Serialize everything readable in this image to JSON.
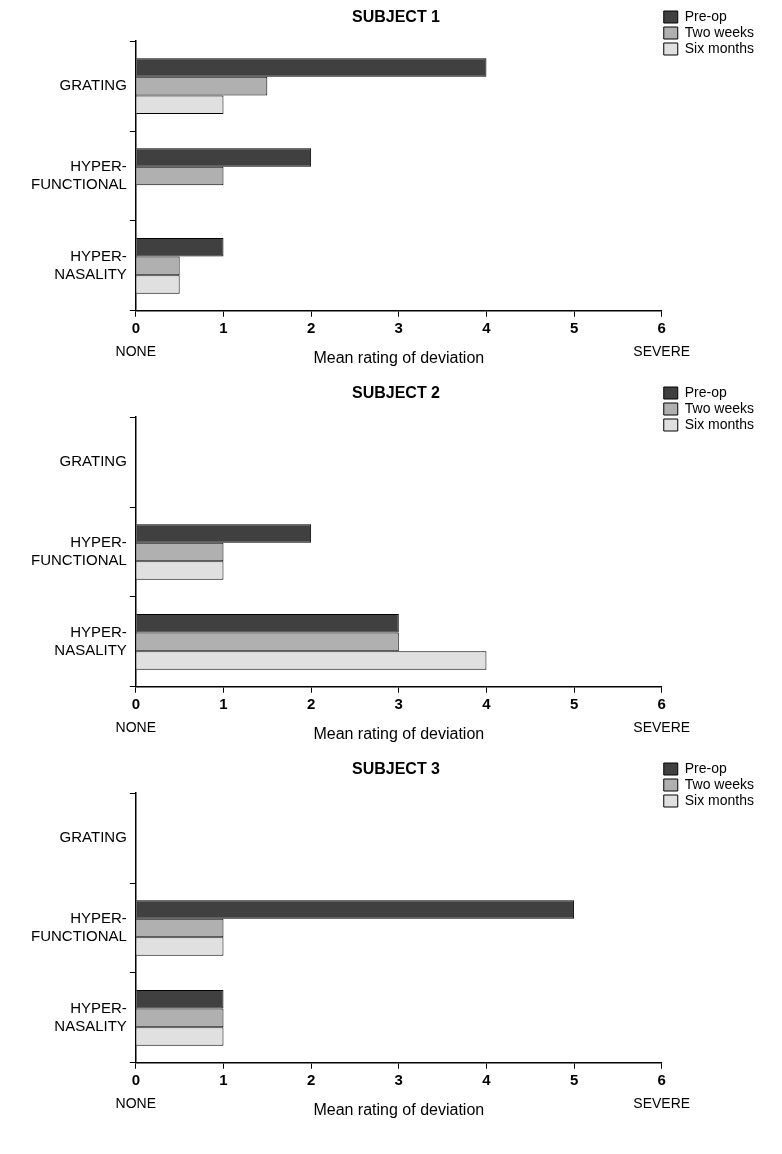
{
  "chart_data": [
    {
      "type": "bar",
      "orientation": "horizontal",
      "title": "SUBJECT 1",
      "xlabel": "Mean rating of deviation",
      "categories": [
        "GRATING",
        "HYPER-\nFUNCTIONAL",
        "HYPER-\nNASALITY"
      ],
      "series": [
        {
          "name": "Pre-op",
          "color": "#404040",
          "values": [
            4,
            2,
            1
          ]
        },
        {
          "name": "Two weeks",
          "color": "#b0b0b0",
          "values": [
            1.5,
            1,
            0.5
          ]
        },
        {
          "name": "Six months",
          "color": "#e0e0e0",
          "values": [
            1,
            0,
            0.5
          ]
        }
      ],
      "xlim": [
        0,
        6
      ],
      "xticks": [
        0,
        1,
        2,
        3,
        4,
        5,
        6
      ],
      "legend": "top right",
      "annotations": [
        "NONE",
        "SEVERE"
      ]
    },
    {
      "type": "bar",
      "orientation": "horizontal",
      "title": "SUBJECT 2",
      "xlabel": "Mean rating of deviation",
      "categories": [
        "GRATING",
        "HYPER-\nFUNCTIONAL",
        "HYPER-\nNASALITY"
      ],
      "series": [
        {
          "name": "Pre-op",
          "color": "#404040",
          "values": [
            0,
            2,
            3
          ]
        },
        {
          "name": "Two weeks",
          "color": "#b0b0b0",
          "values": [
            0,
            1,
            3
          ]
        },
        {
          "name": "Six months",
          "color": "#e0e0e0",
          "values": [
            0,
            1,
            4
          ]
        }
      ],
      "xlim": [
        0,
        6
      ],
      "xticks": [
        0,
        1,
        2,
        3,
        4,
        5,
        6
      ],
      "legend": "top right",
      "annotations": [
        "NONE",
        "SEVERE"
      ]
    },
    {
      "type": "bar",
      "orientation": "horizontal",
      "title": "SUBJECT 3",
      "xlabel": "Mean rating of deviation",
      "categories": [
        "GRATING",
        "HYPER-\nFUNCTIONAL",
        "HYPER-\nNASALITY"
      ],
      "series": [
        {
          "name": "Pre-op",
          "color": "#404040",
          "values": [
            0,
            5,
            1
          ]
        },
        {
          "name": "Two weeks",
          "color": "#b0b0b0",
          "values": [
            0,
            1,
            1
          ]
        },
        {
          "name": "Six months",
          "color": "#e0e0e0",
          "values": [
            0,
            1,
            1
          ]
        }
      ],
      "xlim": [
        0,
        6
      ],
      "xticks": [
        0,
        1,
        2,
        3,
        4,
        5,
        6
      ],
      "legend": "top right",
      "annotations": [
        "NONE",
        "SEVERE"
      ]
    }
  ]
}
